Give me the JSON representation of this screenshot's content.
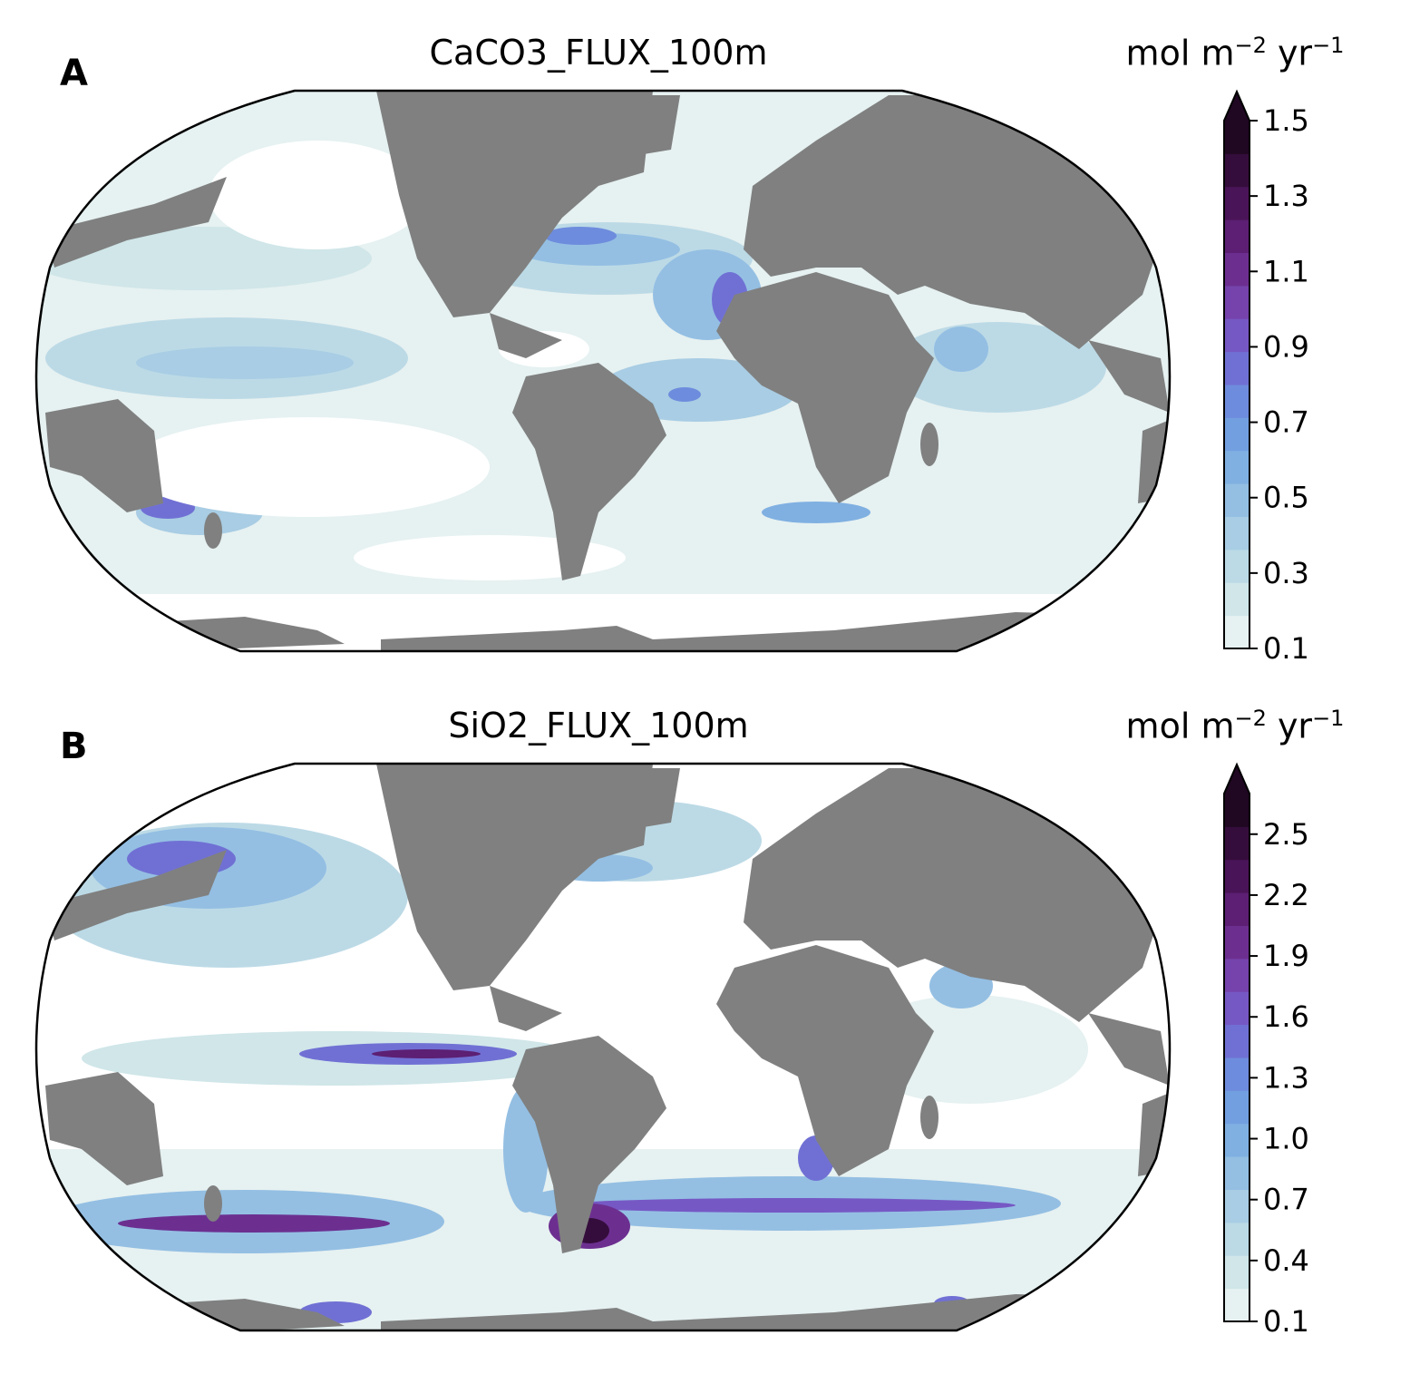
{
  "colors": {
    "land": "#808080",
    "ocean_low": "#ffffff",
    "ramp": [
      "#e6f1f1",
      "#d0e6e9",
      "#bcdae6",
      "#a8cde4",
      "#94bfe3",
      "#80b0e2",
      "#729fe0",
      "#6e8cdd",
      "#7070d4",
      "#7658c4",
      "#7543ab",
      "#6c2f90",
      "#5c1f73",
      "#4a1458",
      "#350d3c",
      "#200722"
    ],
    "frame": "#000000"
  },
  "panels": [
    {
      "letter": "A",
      "title": "CaCO3_FLUX_100m",
      "unit_text": "mol m",
      "unit_exp1": "−2",
      "unit_mid": " yr",
      "unit_exp2": "−1",
      "colorbar": {
        "min": 0.1,
        "max": 1.5,
        "extend": "max",
        "ticks": [
          "0.1",
          "0.3",
          "0.5",
          "0.7",
          "0.9",
          "1.1",
          "1.3",
          "1.5"
        ],
        "tick_values": [
          0.1,
          0.3,
          0.5,
          0.7,
          0.9,
          1.1,
          1.3,
          1.5
        ]
      }
    },
    {
      "letter": "B",
      "title": "SiO2_FLUX_100m",
      "unit_text": "mol m",
      "unit_exp1": "−2",
      "unit_mid": " yr",
      "unit_exp2": "−1",
      "colorbar": {
        "min": 0.1,
        "max": 2.7,
        "extend": "max",
        "ticks": [
          "0.1",
          "0.4",
          "0.7",
          "1.0",
          "1.3",
          "1.6",
          "1.9",
          "2.2",
          "2.5"
        ],
        "tick_values": [
          0.1,
          0.4,
          0.7,
          1.0,
          1.3,
          1.6,
          1.9,
          2.2,
          2.5
        ]
      }
    }
  ]
}
